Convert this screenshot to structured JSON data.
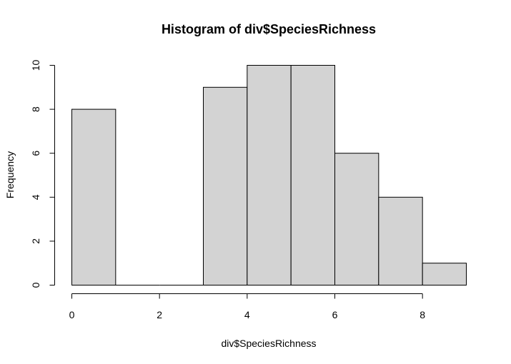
{
  "chart_data": {
    "type": "bar",
    "title": "Histogram of div$SpeciesRichness",
    "xlabel": "div$SpeciesRichness",
    "ylabel": "Frequency",
    "bins": [
      {
        "start": 0,
        "end": 1,
        "count": 8
      },
      {
        "start": 1,
        "end": 2,
        "count": 0
      },
      {
        "start": 2,
        "end": 3,
        "count": 0
      },
      {
        "start": 3,
        "end": 4,
        "count": 9
      },
      {
        "start": 4,
        "end": 5,
        "count": 10
      },
      {
        "start": 5,
        "end": 6,
        "count": 10
      },
      {
        "start": 6,
        "end": 7,
        "count": 6
      },
      {
        "start": 7,
        "end": 8,
        "count": 4
      },
      {
        "start": 8,
        "end": 9,
        "count": 1
      }
    ],
    "xlim": [
      0,
      9
    ],
    "ylim": [
      0,
      10
    ],
    "x_ticks": [
      0,
      2,
      4,
      6,
      8
    ],
    "y_ticks": [
      0,
      2,
      4,
      6,
      8,
      10
    ],
    "bar_color": "#d3d3d3",
    "grid": false
  }
}
